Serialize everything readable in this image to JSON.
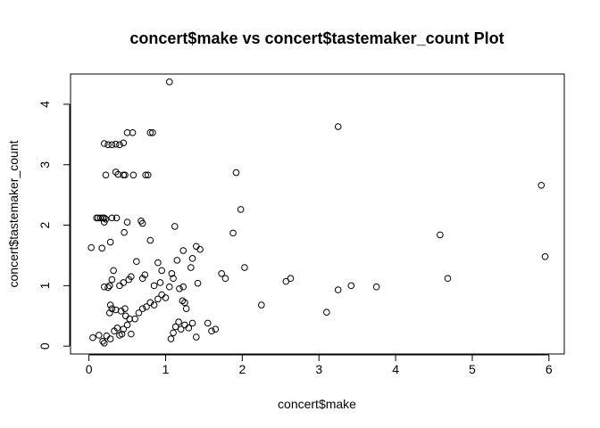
{
  "chart_data": {
    "type": "scatter",
    "title": "concert$make vs concert$tastemaker_count Plot",
    "xlabel": "concert$make",
    "ylabel": "concert$tastemaker_count",
    "xlim": [
      -0.24,
      6.2
    ],
    "ylim": [
      -0.13,
      4.5
    ],
    "xticks": [
      0,
      1,
      2,
      3,
      4,
      5,
      6
    ],
    "yticks": [
      0,
      1,
      2,
      3,
      4
    ],
    "xtick_labels": [
      "0",
      "1",
      "2",
      "3",
      "4",
      "5",
      "6"
    ],
    "ytick_labels": [
      "0",
      "1",
      "2",
      "3",
      "4"
    ],
    "grid": false,
    "marker": "open-circle",
    "point_color": "#000000",
    "points": [
      [
        1.05,
        4.37
      ],
      [
        3.25,
        3.63
      ],
      [
        5.9,
        2.66
      ],
      [
        5.95,
        1.48
      ],
      [
        4.58,
        1.84
      ],
      [
        4.68,
        1.12
      ],
      [
        0.2,
        3.35
      ],
      [
        0.25,
        3.33
      ],
      [
        0.3,
        3.33
      ],
      [
        0.35,
        3.34
      ],
      [
        0.4,
        3.33
      ],
      [
        0.45,
        3.36
      ],
      [
        0.5,
        3.53
      ],
      [
        0.57,
        3.53
      ],
      [
        0.8,
        3.53
      ],
      [
        0.83,
        3.53
      ],
      [
        0.22,
        2.83
      ],
      [
        0.35,
        2.88
      ],
      [
        0.38,
        2.84
      ],
      [
        0.45,
        2.83
      ],
      [
        0.47,
        2.83
      ],
      [
        0.58,
        2.83
      ],
      [
        0.74,
        2.83
      ],
      [
        0.77,
        2.83
      ],
      [
        1.92,
        2.87
      ],
      [
        1.98,
        2.26
      ],
      [
        1.88,
        1.87
      ],
      [
        0.1,
        2.12
      ],
      [
        0.12,
        2.12
      ],
      [
        0.15,
        2.12
      ],
      [
        0.18,
        2.12
      ],
      [
        0.2,
        2.12
      ],
      [
        0.22,
        2.1
      ],
      [
        0.3,
        2.12
      ],
      [
        0.36,
        2.12
      ],
      [
        0.2,
        2.05
      ],
      [
        0.5,
        2.05
      ],
      [
        0.68,
        2.07
      ],
      [
        0.7,
        2.03
      ],
      [
        1.12,
        1.98
      ],
      [
        0.46,
        1.88
      ],
      [
        0.28,
        1.72
      ],
      [
        0.8,
        1.75
      ],
      [
        0.03,
        1.63
      ],
      [
        0.17,
        1.62
      ],
      [
        1.4,
        1.65
      ],
      [
        1.45,
        1.6
      ],
      [
        1.23,
        1.58
      ],
      [
        0.62,
        1.4
      ],
      [
        0.9,
        1.38
      ],
      [
        1.15,
        1.42
      ],
      [
        1.35,
        1.45
      ],
      [
        0.32,
        1.25
      ],
      [
        0.95,
        1.25
      ],
      [
        1.1,
        1.12
      ],
      [
        1.08,
        1.2
      ],
      [
        1.33,
        1.3
      ],
      [
        1.73,
        1.2
      ],
      [
        1.78,
        1.12
      ],
      [
        2.03,
        1.3
      ],
      [
        0.2,
        0.98
      ],
      [
        0.25,
        0.97
      ],
      [
        0.27,
        1.0
      ],
      [
        0.3,
        1.1
      ],
      [
        0.4,
        1.0
      ],
      [
        0.45,
        1.05
      ],
      [
        0.52,
        1.1
      ],
      [
        0.55,
        1.15
      ],
      [
        0.7,
        1.12
      ],
      [
        0.73,
        1.18
      ],
      [
        0.85,
        1.0
      ],
      [
        0.93,
        1.05
      ],
      [
        1.05,
        0.98
      ],
      [
        1.18,
        0.95
      ],
      [
        1.23,
        0.98
      ],
      [
        1.42,
        1.04
      ],
      [
        2.57,
        1.07
      ],
      [
        2.63,
        1.12
      ],
      [
        3.25,
        0.93
      ],
      [
        3.42,
        1.0
      ],
      [
        3.75,
        0.98
      ],
      [
        0.13,
        0.18
      ],
      [
        0.18,
        0.08
      ],
      [
        0.2,
        0.05
      ],
      [
        0.23,
        0.17
      ],
      [
        0.28,
        0.12
      ],
      [
        0.33,
        0.25
      ],
      [
        0.37,
        0.3
      ],
      [
        0.4,
        0.18
      ],
      [
        0.43,
        0.2
      ],
      [
        0.45,
        0.28
      ],
      [
        0.5,
        0.35
      ],
      [
        0.55,
        0.2
      ],
      [
        0.6,
        0.45
      ],
      [
        0.65,
        0.55
      ],
      [
        0.7,
        0.62
      ],
      [
        0.75,
        0.65
      ],
      [
        0.8,
        0.72
      ],
      [
        0.85,
        0.68
      ],
      [
        0.9,
        0.78
      ],
      [
        0.95,
        0.85
      ],
      [
        1.0,
        0.8
      ],
      [
        1.07,
        0.12
      ],
      [
        1.1,
        0.22
      ],
      [
        1.13,
        0.32
      ],
      [
        1.17,
        0.4
      ],
      [
        1.2,
        0.28
      ],
      [
        1.25,
        0.35
      ],
      [
        1.3,
        0.3
      ],
      [
        1.35,
        0.38
      ],
      [
        1.27,
        0.62
      ],
      [
        1.22,
        0.75
      ],
      [
        1.25,
        0.72
      ],
      [
        1.4,
        0.15
      ],
      [
        0.05,
        0.14
      ],
      [
        0.27,
        0.55
      ],
      [
        0.28,
        0.68
      ],
      [
        0.3,
        0.62
      ],
      [
        0.35,
        0.6
      ],
      [
        0.42,
        0.58
      ],
      [
        0.47,
        0.62
      ],
      [
        0.48,
        0.5
      ],
      [
        0.53,
        0.45
      ],
      [
        1.55,
        0.38
      ],
      [
        1.6,
        0.25
      ],
      [
        1.65,
        0.28
      ],
      [
        2.25,
        0.68
      ],
      [
        3.1,
        0.56
      ]
    ]
  }
}
